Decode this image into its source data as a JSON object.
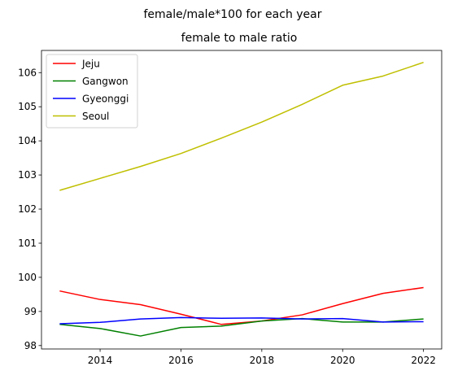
{
  "figure": {
    "suptitle": "female/male*100 for each year"
  },
  "chart_data": {
    "type": "line",
    "title": "female to male ratio",
    "xlabel": "",
    "ylabel": "",
    "x": [
      2013,
      2014,
      2015,
      2016,
      2017,
      2018,
      2019,
      2020,
      2021,
      2022
    ],
    "xlim": [
      2012.55,
      2022.45
    ],
    "ylim": [
      97.9,
      106.65
    ],
    "xticks": [
      2014,
      2016,
      2018,
      2020,
      2022
    ],
    "yticks": [
      98,
      99,
      100,
      101,
      102,
      103,
      104,
      105,
      106
    ],
    "grid": false,
    "legend_position": "top-left",
    "series": [
      {
        "name": "Jeju",
        "color": "#ff0000",
        "values": [
          99.6,
          99.35,
          99.2,
          98.92,
          98.62,
          98.72,
          98.9,
          99.23,
          99.53,
          99.7
        ]
      },
      {
        "name": "Gangwon",
        "color": "#008000",
        "values": [
          98.62,
          98.5,
          98.28,
          98.53,
          98.57,
          98.72,
          98.79,
          98.69,
          98.69,
          98.78
        ]
      },
      {
        "name": "Gyeonggi",
        "color": "#0000ff",
        "values": [
          98.64,
          98.68,
          98.78,
          98.82,
          98.8,
          98.81,
          98.78,
          98.79,
          98.69,
          98.7
        ]
      },
      {
        "name": "Seoul",
        "color": "#bfbf00",
        "values": [
          102.55,
          102.9,
          103.25,
          103.63,
          104.08,
          104.55,
          105.07,
          105.63,
          105.9,
          106.3
        ]
      }
    ]
  }
}
